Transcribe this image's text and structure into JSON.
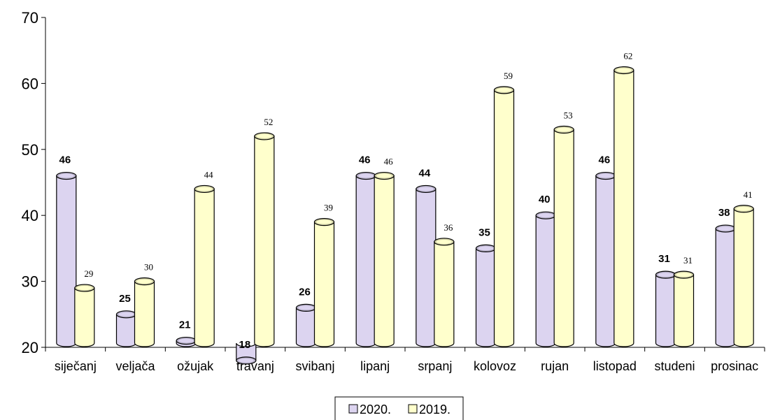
{
  "chart_data": {
    "type": "bar",
    "categories": [
      "siječanj",
      "veljača",
      "ožujak",
      "travanj",
      "svibanj",
      "lipanj",
      "srpanj",
      "kolovoz",
      "rujan",
      "listopad",
      "studeni",
      "prosinac"
    ],
    "series": [
      {
        "name": "2020.",
        "values": [
          46,
          25,
          21,
          18,
          26,
          46,
          44,
          35,
          40,
          46,
          31,
          38
        ],
        "color": "#dcd4f0"
      },
      {
        "name": "2019.",
        "values": [
          29,
          30,
          44,
          52,
          39,
          46,
          36,
          59,
          53,
          62,
          31,
          41
        ],
        "color": "#ffffcc"
      }
    ],
    "yticks": [
      20,
      30,
      40,
      50,
      60,
      70
    ],
    "ylim": [
      20,
      70
    ],
    "grid": false,
    "legend_position": "bottom-center",
    "bar_style": "3d-cylinder"
  }
}
